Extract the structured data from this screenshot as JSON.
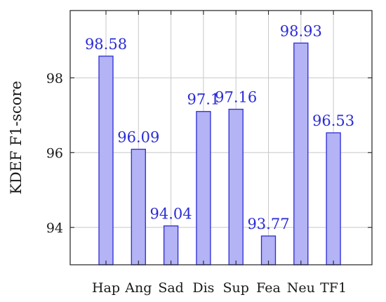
{
  "chart_data": {
    "type": "bar",
    "categories": [
      "Hap",
      "Ang",
      "Sad",
      "Dis",
      "Sup",
      "Fea",
      "Neu",
      "TF1"
    ],
    "values": [
      98.58,
      96.09,
      94.04,
      97.1,
      97.16,
      93.77,
      98.93,
      96.53
    ],
    "data_labels": [
      "98.58",
      "96.09",
      "94.04",
      "97.1",
      "97.16",
      "93.77",
      "98.93",
      "96.53"
    ],
    "title": "",
    "xlabel": "",
    "ylabel": "KDEF F1-score",
    "ylim": [
      93,
      99.8
    ],
    "yticks": [
      94,
      96,
      98
    ],
    "grid": true,
    "colors": {
      "bar_fill": "#b3b3f5",
      "bar_edge": "#2b2bd6",
      "label": "#2b2bd6"
    }
  }
}
